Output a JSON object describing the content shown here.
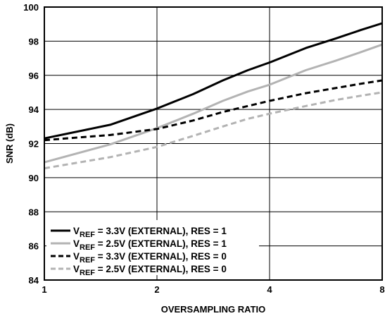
{
  "chart_data": {
    "type": "line",
    "xlabel": "OVERSAMPLING RATIO",
    "ylabel": "SNR (dB)",
    "xscale": "log2",
    "xlim": [
      1,
      8
    ],
    "ylim": [
      84,
      100
    ],
    "xticks": [
      1,
      2,
      4,
      8
    ],
    "yticks": [
      84,
      86,
      88,
      90,
      92,
      94,
      96,
      98,
      100
    ],
    "grid": true,
    "legend_position": "bottom-left",
    "series": [
      {
        "name": "V_REF = 3.3V (EXTERNAL), RES = 1",
        "legend": {
          "main": "V",
          "sub": "REF",
          "rest": " = 3.3V (EXTERNAL), RES = 1"
        },
        "color": "#000000",
        "style": "solid",
        "x": [
          1,
          1.5,
          2,
          2.5,
          3,
          3.5,
          4,
          5,
          6,
          7,
          8
        ],
        "y": [
          92.3,
          93.1,
          94.05,
          94.9,
          95.7,
          96.3,
          96.75,
          97.6,
          98.15,
          98.65,
          99.05
        ]
      },
      {
        "name": "V_REF = 2.5V (EXTERNAL), RES = 1",
        "legend": {
          "main": "V",
          "sub": "REF",
          "rest": " = 2.5V (EXTERNAL), RES = 1"
        },
        "color": "#b3b3b3",
        "style": "solid",
        "x": [
          1,
          1.5,
          2,
          2.5,
          3,
          3.5,
          4,
          5,
          6,
          7,
          8
        ],
        "y": [
          90.9,
          91.95,
          92.9,
          93.75,
          94.5,
          95.05,
          95.45,
          96.3,
          96.85,
          97.35,
          97.8
        ]
      },
      {
        "name": "V_REF = 3.3V (EXTERNAL), RES = 0",
        "legend": {
          "main": "V",
          "sub": "REF",
          "rest": " = 3.3V (EXTERNAL), RES = 0"
        },
        "color": "#000000",
        "style": "dashed",
        "x": [
          1,
          1.5,
          2,
          2.5,
          3,
          3.5,
          4,
          5,
          6,
          7,
          8
        ],
        "y": [
          92.2,
          92.5,
          92.85,
          93.35,
          93.85,
          94.2,
          94.5,
          94.95,
          95.25,
          95.5,
          95.7
        ]
      },
      {
        "name": "V_REF = 2.5V (EXTERNAL), RES = 0",
        "legend": {
          "main": "V",
          "sub": "REF",
          "rest": " = 2.5V (EXTERNAL), RES = 0"
        },
        "color": "#b3b3b3",
        "style": "dashed",
        "x": [
          1,
          1.5,
          2,
          2.5,
          3,
          3.5,
          4,
          5,
          6,
          7,
          8
        ],
        "y": [
          90.55,
          91.2,
          91.8,
          92.45,
          93.0,
          93.45,
          93.75,
          94.2,
          94.55,
          94.8,
          95.0
        ]
      }
    ]
  }
}
